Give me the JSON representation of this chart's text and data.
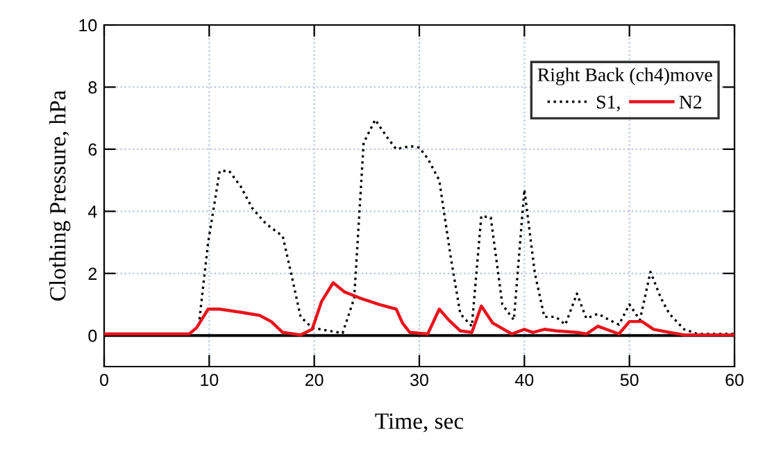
{
  "chart_data": {
    "type": "line",
    "xlabel": "Time, sec",
    "ylabel": "Clothing Pressure, hPa",
    "legend_title": "Right Back (ch4)move",
    "legend": "top right",
    "grid": true,
    "xlim": [
      0,
      60
    ],
    "xticks": [
      0,
      10,
      20,
      30,
      40,
      50,
      60
    ],
    "ylim": [
      -1,
      10
    ],
    "yticks": [
      0,
      2,
      4,
      6,
      8,
      10
    ],
    "ref_lines": [
      {
        "axis": "y",
        "value": 0,
        "color": "#000000"
      }
    ],
    "series": [
      {
        "name": "S1,",
        "color": "#000000",
        "line_style": "dotted",
        "x": [
          0,
          8.1,
          9.0,
          9.9,
          11.0,
          11.9,
          13.0,
          14.1,
          15.4,
          17.0,
          17.8,
          18.7,
          19.8,
          21.4,
          22.7,
          23.8,
          24.7,
          25.8,
          26.9,
          27.8,
          29.1,
          30.0,
          30.8,
          31.9,
          33.0,
          33.9,
          35.0,
          35.9,
          36.8,
          37.9,
          39.0,
          40.0,
          41.0,
          41.9,
          43.0,
          43.9,
          45.0,
          45.9,
          47.0,
          48.1,
          49.0,
          50.0,
          51.0,
          52.0,
          53.0,
          53.8,
          55.2,
          56.5,
          60
        ],
        "values": [
          0.05,
          0.05,
          0.3,
          3.0,
          5.3,
          5.3,
          4.8,
          4.1,
          3.6,
          3.2,
          2.0,
          0.6,
          0.25,
          0.15,
          0.08,
          1.2,
          6.2,
          6.95,
          6.4,
          6.0,
          6.1,
          6.05,
          5.7,
          5.0,
          2.5,
          0.7,
          0.3,
          3.85,
          3.8,
          1.0,
          0.5,
          4.7,
          2.0,
          0.6,
          0.6,
          0.35,
          1.35,
          0.55,
          0.7,
          0.5,
          0.35,
          1.0,
          0.5,
          2.05,
          1.2,
          0.7,
          0.2,
          0.05,
          0.05
        ]
      },
      {
        "name": "N2",
        "color": "#e8141c",
        "line_style": "solid",
        "x": [
          0,
          8.1,
          8.8,
          9.9,
          11.0,
          13.0,
          14.8,
          15.9,
          17.0,
          18.7,
          19.8,
          20.7,
          21.8,
          22.9,
          24.4,
          26.2,
          27.8,
          28.4,
          29.1,
          30.8,
          31.9,
          32.8,
          33.9,
          35.0,
          35.9,
          37.0,
          38.8,
          40.0,
          40.8,
          41.9,
          43.0,
          45.0,
          45.9,
          47.0,
          49.0,
          50.0,
          51.2,
          52.3,
          53.8,
          55.2,
          60
        ],
        "values": [
          0.05,
          0.05,
          0.25,
          0.85,
          0.85,
          0.75,
          0.65,
          0.45,
          0.1,
          0.02,
          0.2,
          1.1,
          1.7,
          1.4,
          1.2,
          1.0,
          0.85,
          0.4,
          0.1,
          0.05,
          0.85,
          0.5,
          0.15,
          0.1,
          0.95,
          0.4,
          0.05,
          0.2,
          0.1,
          0.2,
          0.15,
          0.1,
          0.05,
          0.3,
          0.05,
          0.45,
          0.45,
          0.2,
          0.1,
          0.02,
          0.02
        ]
      }
    ]
  }
}
